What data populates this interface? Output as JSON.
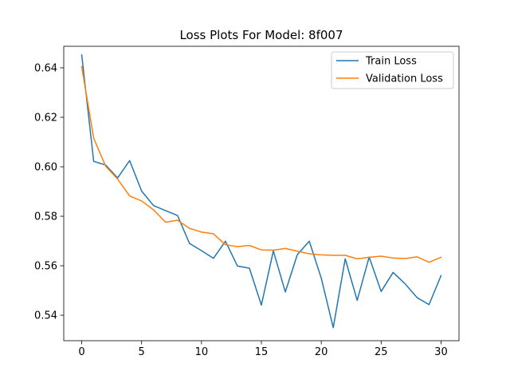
{
  "chart_data": {
    "type": "line",
    "title": "Loss Plots For Model: 8f007",
    "xlabel": "",
    "ylabel": "",
    "xlim": [
      -1.5,
      31.5
    ],
    "ylim": [
      0.5297,
      0.6487
    ],
    "xticks": [
      0,
      5,
      10,
      15,
      20,
      25,
      30
    ],
    "xtick_labels": [
      "0",
      "5",
      "10",
      "15",
      "20",
      "25",
      "30"
    ],
    "yticks": [
      0.54,
      0.56,
      0.58,
      0.6,
      0.62,
      0.64
    ],
    "ytick_labels": [
      "0.54",
      "0.56",
      "0.58",
      "0.60",
      "0.62",
      "0.64"
    ],
    "grid": false,
    "legend_position": "top-right",
    "x": [
      0,
      1,
      2,
      3,
      4,
      5,
      6,
      7,
      8,
      9,
      10,
      11,
      12,
      13,
      14,
      15,
      16,
      17,
      18,
      19,
      20,
      21,
      22,
      23,
      24,
      25,
      26,
      27,
      28,
      29,
      30
    ],
    "series": [
      {
        "name": "Train Loss",
        "color": "#1f77b4",
        "values": [
          0.6452,
          0.6022,
          0.6007,
          0.5955,
          0.6025,
          0.5902,
          0.5843,
          0.5823,
          0.5803,
          0.569,
          0.5661,
          0.563,
          0.5699,
          0.5599,
          0.559,
          0.5441,
          0.566,
          0.5494,
          0.5645,
          0.5699,
          0.555,
          0.535,
          0.5628,
          0.546,
          0.5635,
          0.5496,
          0.5573,
          0.5527,
          0.5471,
          0.5443,
          0.556
        ]
      },
      {
        "name": "Validation Loss",
        "color": "#ff7f0e",
        "values": [
          0.6405,
          0.6115,
          0.6002,
          0.595,
          0.5882,
          0.5862,
          0.5826,
          0.5776,
          0.5784,
          0.5751,
          0.5736,
          0.5729,
          0.5685,
          0.5677,
          0.5682,
          0.5664,
          0.5663,
          0.567,
          0.5659,
          0.5648,
          0.5644,
          0.5642,
          0.5642,
          0.5628,
          0.5634,
          0.5639,
          0.5631,
          0.5629,
          0.5636,
          0.5614,
          0.5634
        ]
      }
    ]
  }
}
